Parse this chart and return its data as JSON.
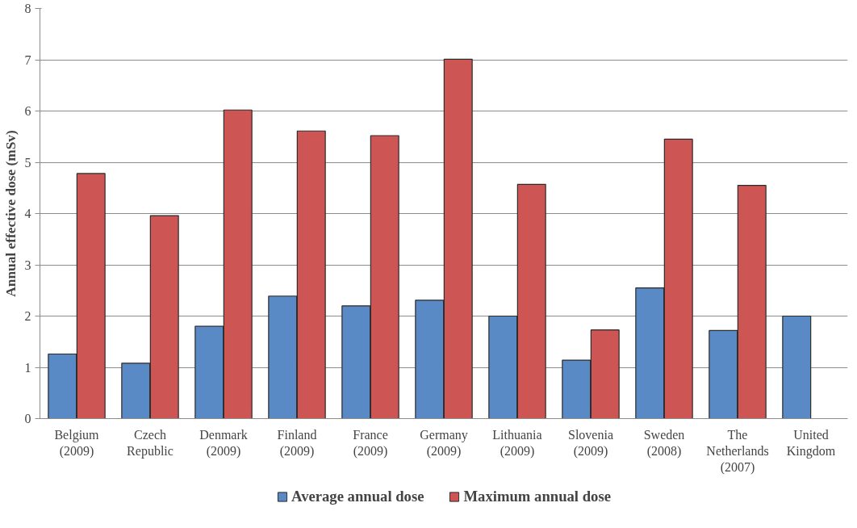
{
  "chart_data": {
    "type": "bar",
    "ylabel": "Annual effective dose (mSv)",
    "categories": [
      "Belgium\n(2009)",
      "Czech\nRepublic",
      "Denmark\n(2009)",
      "Finland\n(2009)",
      "France\n(2009)",
      "Germany\n(2009)",
      "Lithuania\n(2009)",
      "Slovenia\n(2009)",
      "Sweden\n(2008)",
      "The\nNetherlands\n(2007)",
      "United\nKingdom"
    ],
    "series": [
      {
        "name": "Average annual dose",
        "color": "#5a8ac6",
        "values": [
          1.26,
          1.08,
          1.8,
          2.39,
          2.2,
          2.31,
          2.0,
          1.14,
          2.55,
          1.72,
          2.0
        ]
      },
      {
        "name": "Maximum annual dose",
        "color": "#cd5654",
        "values": [
          4.78,
          3.96,
          6.02,
          5.61,
          5.52,
          7.01,
          4.57,
          1.73,
          5.45,
          4.55,
          null
        ]
      }
    ],
    "ylim": [
      0,
      8
    ],
    "yticks": [
      0,
      1,
      2,
      3,
      4,
      5,
      6,
      7,
      8
    ],
    "grid": "y",
    "legend": "bottom"
  }
}
